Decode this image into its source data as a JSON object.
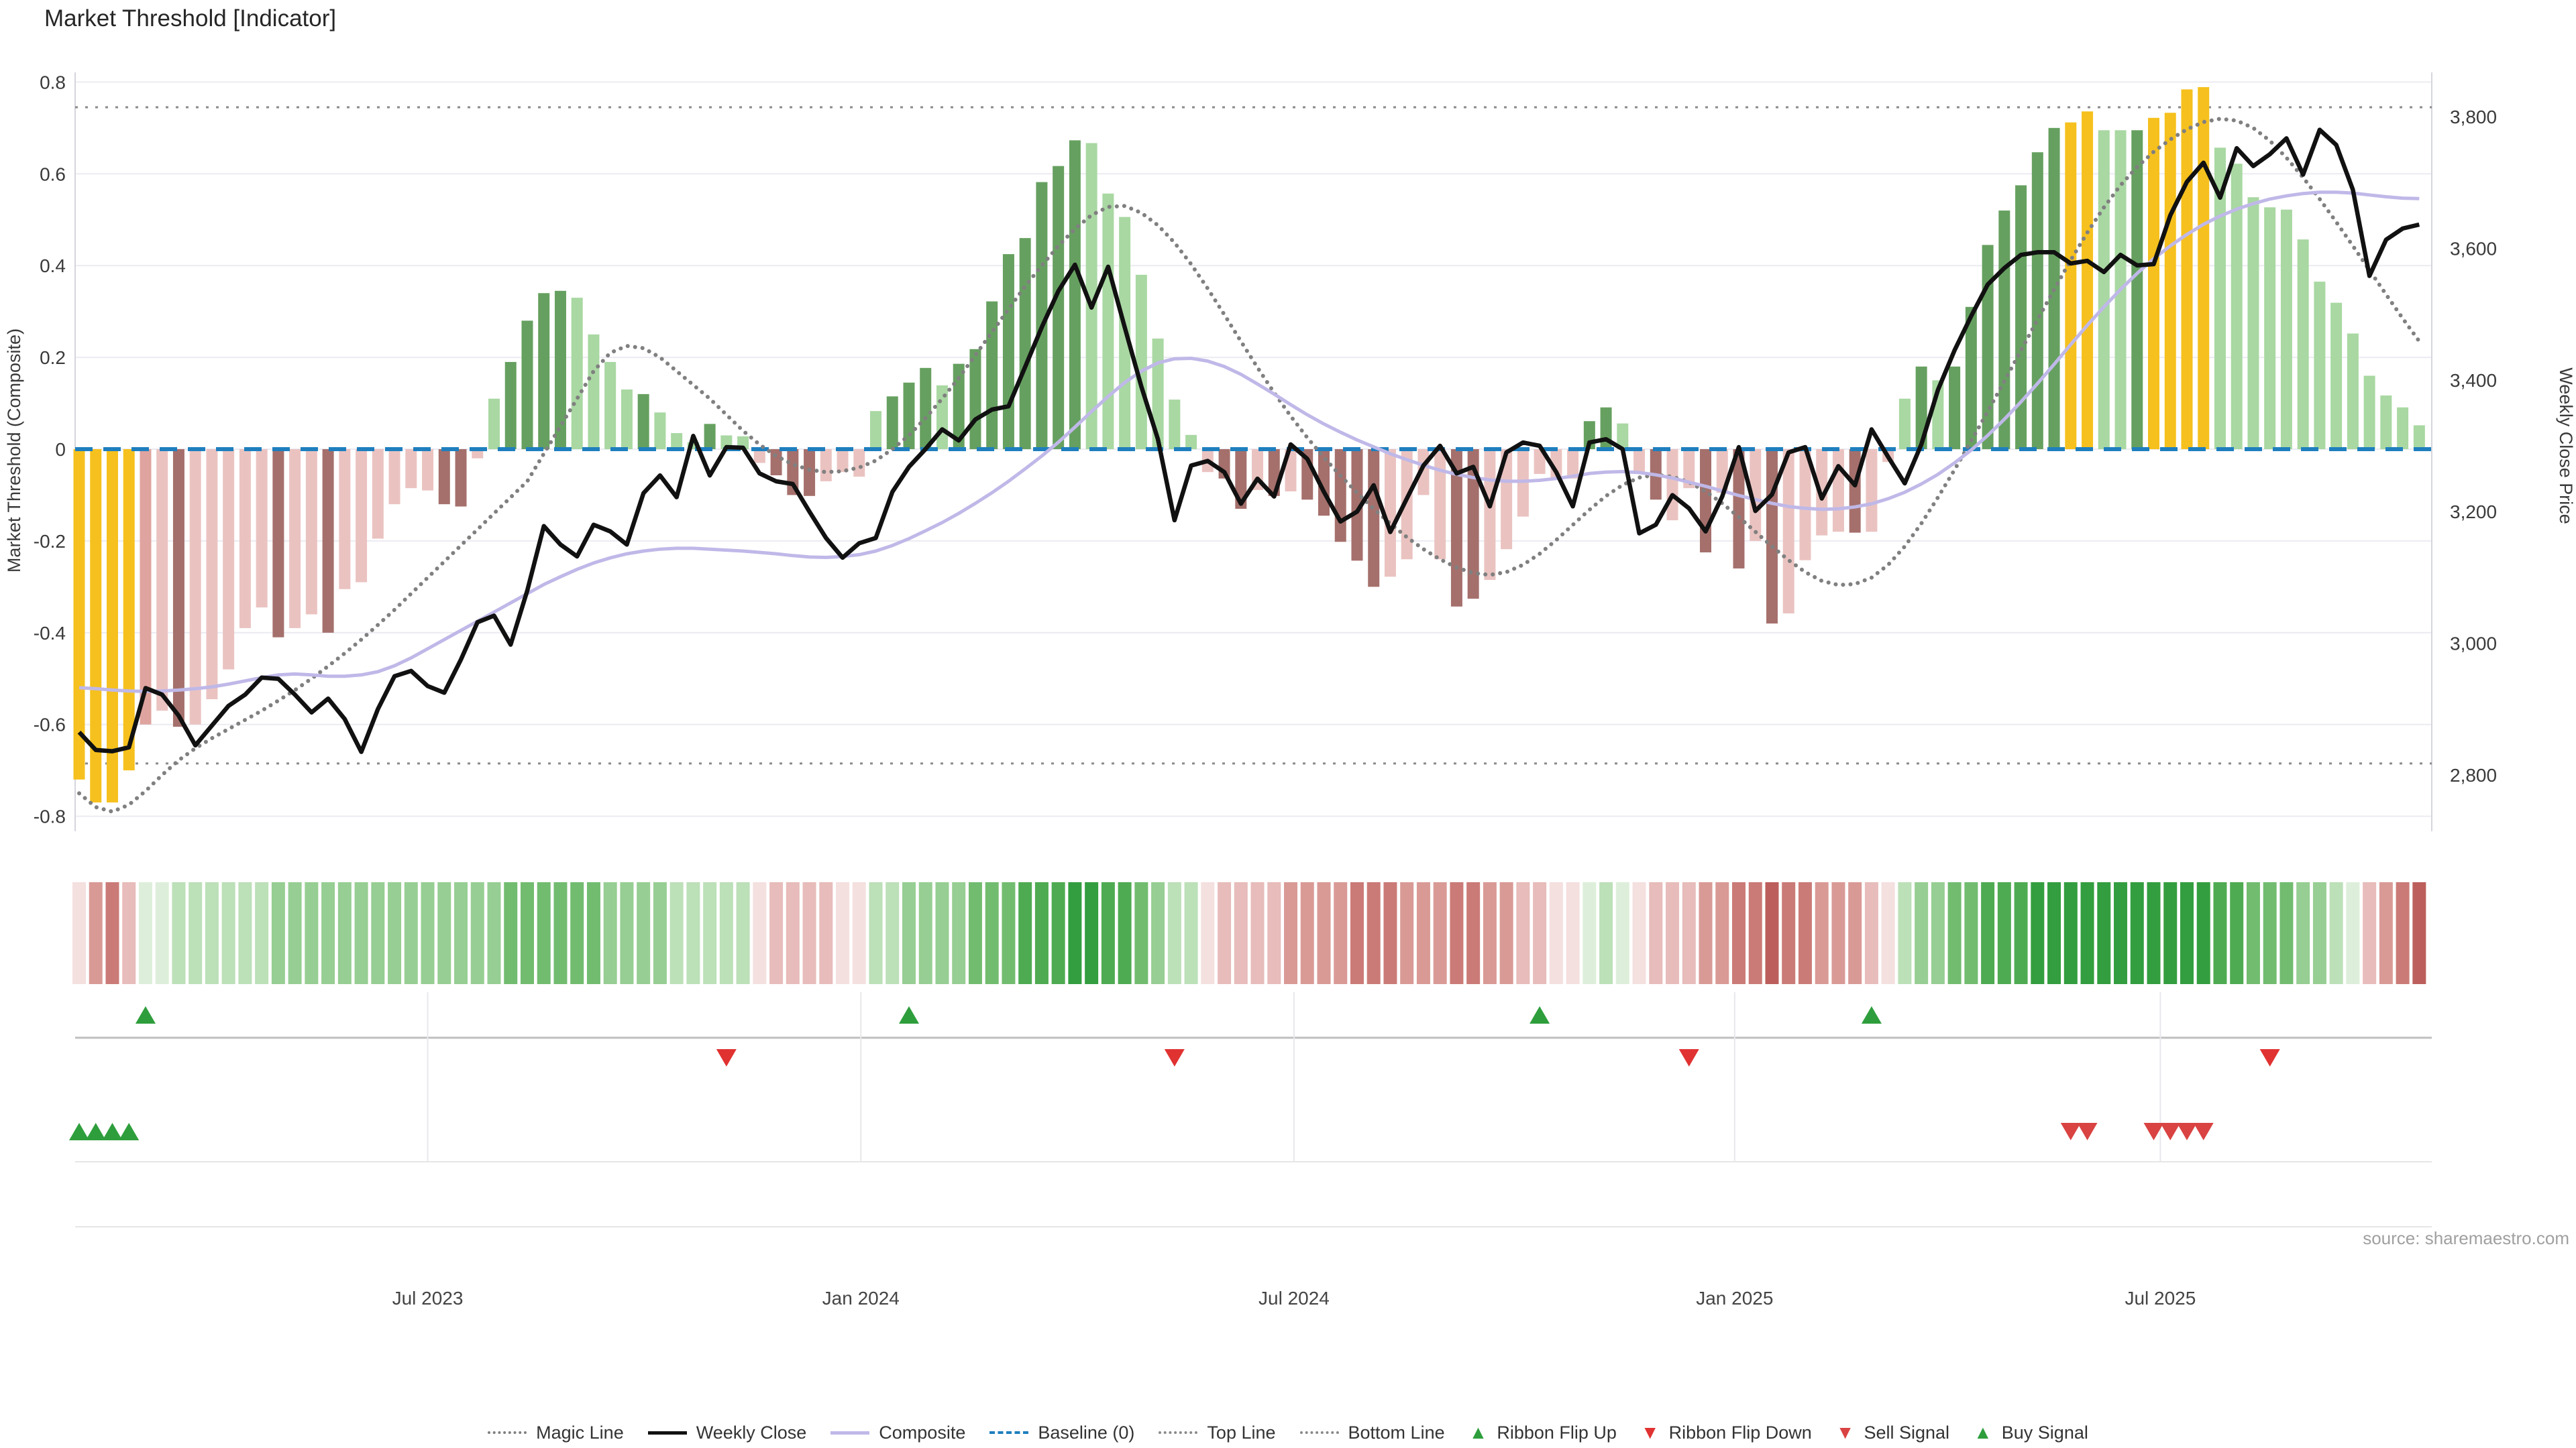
{
  "title": "Market Threshold [Indicator]",
  "source_note": "source: sharemaestro.com",
  "axes": {
    "left_label": "Market Threshold (Composite)",
    "right_label": "Weekly Close Price",
    "left_ticks": [
      {
        "v": 0.8,
        "label": "0.8"
      },
      {
        "v": 0.6,
        "label": "0.6"
      },
      {
        "v": 0.4,
        "label": "0.4"
      },
      {
        "v": 0.2,
        "label": "0.2"
      },
      {
        "v": 0.0,
        "label": "0"
      },
      {
        "v": -0.2,
        "label": "-0.2"
      },
      {
        "v": -0.4,
        "label": "-0.4"
      },
      {
        "v": -0.6,
        "label": "-0.6"
      },
      {
        "v": -0.8,
        "label": "-0.8"
      }
    ],
    "right_ticks": [
      {
        "p": 3800,
        "label": "3,800"
      },
      {
        "p": 3600,
        "label": "3,600"
      },
      {
        "p": 3400,
        "label": "3,400"
      },
      {
        "p": 3200,
        "label": "3,200"
      },
      {
        "p": 3000,
        "label": "3,000"
      },
      {
        "p": 2800,
        "label": "2,800"
      }
    ],
    "x_ticks": [
      {
        "week": 21.0,
        "label": "Jul 2023"
      },
      {
        "week": 47.1,
        "label": "Jan 2024"
      },
      {
        "week": 73.2,
        "label": "Jul 2024"
      },
      {
        "week": 99.75,
        "label": "Jan 2025"
      },
      {
        "week": 125.4,
        "label": "Jul 2025"
      }
    ],
    "left_range": [
      -0.8,
      0.8
    ],
    "right_range": [
      2800,
      3800
    ]
  },
  "legend": [
    {
      "label": "Magic Line",
      "swatch": "dotted",
      "color": "#7f7f7f"
    },
    {
      "label": "Weekly Close",
      "swatch": "solid",
      "color": "#111111"
    },
    {
      "label": "Composite",
      "swatch": "solid",
      "color": "#bfb8e8"
    },
    {
      "label": "Baseline (0)",
      "swatch": "dashed",
      "color": "#1f7fbe"
    },
    {
      "label": "Top Line",
      "swatch": "dotted",
      "color": "#8a8a8a"
    },
    {
      "label": "Bottom Line",
      "swatch": "dotted",
      "color": "#8a8a8a"
    },
    {
      "label": "Ribbon Flip Up",
      "swatch": "triangle-up",
      "color": "#2e9e3c"
    },
    {
      "label": "Ribbon Flip Down",
      "swatch": "triangle-down",
      "color": "#e03231"
    },
    {
      "label": "Sell Signal",
      "swatch": "triangle-down",
      "color": "#d94342"
    },
    {
      "label": "Buy Signal",
      "swatch": "triangle-up",
      "color": "#2e9e3c"
    }
  ],
  "colors": {
    "bar_palette": {
      "g": "#f6c11e",
      "p": "#eac3c1",
      "s": "#dfa49f",
      "m": "#a5706c",
      "L": "#a9d8a2",
      "D": "#66a060"
    },
    "ribbon_palette": {
      "r1": "#f4e0df",
      "r2": "#e7bcba",
      "r3": "#d99a96",
      "r4": "#cb7b77",
      "r5": "#bc5f5c",
      "g1": "#ddefda",
      "g2": "#bce0b8",
      "g3": "#97ce93",
      "g4": "#72bc70",
      "g5": "#4fab52",
      "g6": "#339e3f"
    },
    "weekly_close": "#111111",
    "composite": "#bfb8e8",
    "magic_line": "#808080",
    "top_bottom_line": "#8a8a8a",
    "baseline": "#1f7fbe",
    "grid": "#ebebf2",
    "spine": "#d5d5dd",
    "separator": "#bfbfbf",
    "panel_line": "#e6e6e6",
    "signal_up": "#2e9e3c",
    "signal_down": "#e03231",
    "sell": "#d94342",
    "buy": "#2e9e3c",
    "tick_text": "#3a3a3a",
    "source_text": "#a0a0a0"
  },
  "chart_data": {
    "type": "bar+line",
    "title": "Market Threshold [Indicator]",
    "x_unit": "weekly (Feb 2023 - Nov 2025)",
    "weeks": 142,
    "ylabel_left": "Market Threshold (Composite)",
    "ylabel_right": "Weekly Close Price",
    "ylim_left": [
      -0.8,
      0.8
    ],
    "ylim_right": [
      2800,
      3800
    ],
    "top_line": 0.745,
    "bottom_line": -0.685,
    "baseline": 0,
    "bars": {
      "values": [
        -0.72,
        -0.77,
        -0.77,
        -0.7,
        -0.6,
        -0.57,
        -0.605,
        -0.6,
        -0.545,
        -0.48,
        -0.39,
        -0.345,
        -0.41,
        -0.39,
        -0.36,
        -0.4,
        -0.305,
        -0.29,
        -0.195,
        -0.12,
        -0.085,
        -0.09,
        -0.12,
        -0.125,
        -0.02,
        0.11,
        0.19,
        0.28,
        0.34,
        0.345,
        0.33,
        0.25,
        0.19,
        0.13,
        0.12,
        0.08,
        0.035,
        0.015,
        0.055,
        0.03,
        0.028,
        -0.03,
        -0.057,
        -0.1,
        -0.102,
        -0.07,
        -0.05,
        -0.06,
        0.083,
        0.115,
        0.145,
        0.177,
        0.139,
        0.186,
        0.218,
        0.322,
        0.425,
        0.46,
        0.582,
        0.617,
        0.673,
        0.667,
        0.557,
        0.506,
        0.38,
        0.241,
        0.108,
        0.031,
        -0.05,
        -0.064,
        -0.13,
        -0.089,
        -0.102,
        -0.092,
        -0.11,
        -0.145,
        -0.202,
        -0.243,
        -0.3,
        -0.278,
        -0.24,
        -0.1,
        -0.24,
        -0.343,
        -0.326,
        -0.285,
        -0.218,
        -0.147,
        -0.054,
        -0.062,
        -0.064,
        0.061,
        0.091,
        0.056,
        -0.054,
        -0.11,
        -0.155,
        -0.085,
        -0.225,
        -0.095,
        -0.26,
        -0.2,
        -0.38,
        -0.358,
        -0.242,
        -0.188,
        -0.18,
        -0.182,
        -0.18,
        -0.028,
        0.11,
        0.18,
        0.15,
        0.18,
        0.31,
        0.445,
        0.52,
        0.575,
        0.647,
        0.7,
        0.712,
        0.736,
        0.695,
        0.695,
        0.695,
        0.722,
        0.733,
        0.784,
        0.789,
        0.657,
        0.622,
        0.549,
        0.527,
        0.522,
        0.457,
        0.365,
        0.319,
        0.252,
        0.16,
        0.117,
        0.091,
        0.052
      ],
      "colors": [
        "g",
        "g",
        "g",
        "g",
        "s",
        "p",
        "m",
        "p",
        "p",
        "p",
        "p",
        "p",
        "m",
        "p",
        "p",
        "m",
        "p",
        "p",
        "p",
        "p",
        "p",
        "p",
        "m",
        "m",
        "p",
        "L",
        "D",
        "D",
        "D",
        "D",
        "L",
        "L",
        "L",
        "L",
        "D",
        "L",
        "L",
        "L",
        "D",
        "L",
        "L",
        "p",
        "m",
        "m",
        "m",
        "p",
        "p",
        "p",
        "L",
        "D",
        "D",
        "D",
        "L",
        "D",
        "D",
        "D",
        "D",
        "D",
        "D",
        "D",
        "D",
        "L",
        "L",
        "L",
        "L",
        "L",
        "L",
        "L",
        "p",
        "m",
        "m",
        "p",
        "m",
        "p",
        "m",
        "m",
        "m",
        "m",
        "m",
        "p",
        "p",
        "p",
        "p",
        "m",
        "m",
        "p",
        "p",
        "p",
        "p",
        "p",
        "p",
        "D",
        "D",
        "L",
        "p",
        "m",
        "p",
        "p",
        "m",
        "p",
        "m",
        "p",
        "m",
        "p",
        "p",
        "p",
        "p",
        "m",
        "p",
        "p",
        "L",
        "D",
        "L",
        "D",
        "D",
        "D",
        "D",
        "D",
        "D",
        "D",
        "g",
        "g",
        "L",
        "L",
        "D",
        "g",
        "g",
        "g",
        "g",
        "L",
        "L",
        "L",
        "L",
        "L",
        "L",
        "L",
        "L",
        "L",
        "L",
        "L",
        "L",
        "L"
      ]
    },
    "weekly_close": [
      2865,
      2838,
      2836,
      2842,
      2932,
      2922,
      2890,
      2845,
      2875,
      2905,
      2922,
      2948,
      2946,
      2922,
      2895,
      2916,
      2885,
      2835,
      2900,
      2950,
      2958,
      2935,
      2925,
      2975,
      3032,
      3042,
      2998,
      3080,
      3178,
      3150,
      3132,
      3180,
      3170,
      3150,
      3228,
      3255,
      3222,
      3315,
      3255,
      3298,
      3297,
      3258,
      3246,
      3242,
      3200,
      3160,
      3130,
      3152,
      3160,
      3230,
      3268,
      3295,
      3325,
      3308,
      3340,
      3355,
      3360,
      3420,
      3480,
      3535,
      3575,
      3510,
      3572,
      3480,
      3390,
      3310,
      3187,
      3270,
      3277,
      3260,
      3212,
      3250,
      3223,
      3302,
      3280,
      3230,
      3185,
      3200,
      3240,
      3169,
      3220,
      3270,
      3300,
      3258,
      3268,
      3208,
      3290,
      3305,
      3300,
      3260,
      3208,
      3305,
      3310,
      3295,
      3167,
      3180,
      3225,
      3205,
      3170,
      3223,
      3298,
      3201,
      3226,
      3290,
      3298,
      3220,
      3269,
      3240,
      3325,
      3283,
      3243,
      3302,
      3385,
      3445,
      3497,
      3545,
      3570,
      3590,
      3594,
      3594,
      3577,
      3581,
      3564,
      3590,
      3574,
      3576,
      3650,
      3701,
      3730,
      3677,
      3752,
      3725,
      3743,
      3767,
      3712,
      3780,
      3757,
      3689,
      3558,
      3613,
      3630,
      3636
    ],
    "composite": [
      -0.52,
      -0.522,
      -0.525,
      -0.527,
      -0.528,
      -0.527,
      -0.525,
      -0.522,
      -0.518,
      -0.512,
      -0.505,
      -0.498,
      -0.492,
      -0.49,
      -0.492,
      -0.495,
      -0.495,
      -0.492,
      -0.485,
      -0.472,
      -0.455,
      -0.435,
      -0.415,
      -0.395,
      -0.375,
      -0.355,
      -0.335,
      -0.315,
      -0.295,
      -0.278,
      -0.262,
      -0.248,
      -0.237,
      -0.228,
      -0.222,
      -0.218,
      -0.216,
      -0.216,
      -0.218,
      -0.22,
      -0.222,
      -0.225,
      -0.228,
      -0.232,
      -0.235,
      -0.236,
      -0.234,
      -0.23,
      -0.222,
      -0.21,
      -0.195,
      -0.178,
      -0.16,
      -0.14,
      -0.118,
      -0.095,
      -0.07,
      -0.043,
      -0.015,
      0.015,
      0.048,
      0.082,
      0.115,
      0.145,
      0.17,
      0.188,
      0.197,
      0.198,
      0.192,
      0.18,
      0.163,
      0.142,
      0.12,
      0.097,
      0.075,
      0.055,
      0.037,
      0.02,
      0.005,
      -0.01,
      -0.023,
      -0.035,
      -0.046,
      -0.055,
      -0.062,
      -0.067,
      -0.07,
      -0.07,
      -0.068,
      -0.064,
      -0.059,
      -0.053,
      -0.05,
      -0.049,
      -0.051,
      -0.056,
      -0.063,
      -0.072,
      -0.081,
      -0.091,
      -0.101,
      -0.11,
      -0.118,
      -0.125,
      -0.129,
      -0.131,
      -0.13,
      -0.126,
      -0.119,
      -0.108,
      -0.094,
      -0.076,
      -0.055,
      -0.03,
      -0.002,
      0.03,
      0.065,
      0.103,
      0.143,
      0.185,
      0.228,
      0.27,
      0.31,
      0.348,
      0.383,
      0.415,
      0.443,
      0.468,
      0.49,
      0.508,
      0.523,
      0.535,
      0.545,
      0.552,
      0.557,
      0.56,
      0.56,
      0.558,
      0.554,
      0.55,
      0.547,
      0.546
    ],
    "magic_line": [
      -0.75,
      -0.78,
      -0.79,
      -0.775,
      -0.745,
      -0.71,
      -0.678,
      -0.652,
      -0.63,
      -0.61,
      -0.59,
      -0.57,
      -0.548,
      -0.525,
      -0.5,
      -0.473,
      -0.445,
      -0.415,
      -0.383,
      -0.35,
      -0.315,
      -0.28,
      -0.245,
      -0.21,
      -0.175,
      -0.14,
      -0.105,
      -0.07,
      -0.01,
      0.05,
      0.11,
      0.17,
      0.21,
      0.225,
      0.22,
      0.2,
      0.17,
      0.14,
      0.11,
      0.075,
      0.04,
      0.01,
      -0.015,
      -0.033,
      -0.045,
      -0.05,
      -0.048,
      -0.04,
      -0.025,
      0.0,
      0.03,
      0.068,
      0.11,
      0.155,
      0.205,
      0.255,
      0.305,
      0.355,
      0.4,
      0.443,
      0.48,
      0.51,
      0.528,
      0.53,
      0.515,
      0.488,
      0.45,
      0.403,
      0.35,
      0.293,
      0.235,
      0.178,
      0.123,
      0.072,
      0.025,
      -0.018,
      -0.058,
      -0.095,
      -0.13,
      -0.162,
      -0.192,
      -0.218,
      -0.24,
      -0.258,
      -0.27,
      -0.274,
      -0.268,
      -0.252,
      -0.228,
      -0.198,
      -0.165,
      -0.132,
      -0.102,
      -0.078,
      -0.062,
      -0.056,
      -0.06,
      -0.072,
      -0.092,
      -0.118,
      -0.148,
      -0.18,
      -0.212,
      -0.242,
      -0.268,
      -0.287,
      -0.296,
      -0.294,
      -0.28,
      -0.252,
      -0.212,
      -0.162,
      -0.105,
      -0.045,
      0.018,
      0.082,
      0.148,
      0.215,
      0.282,
      0.348,
      0.412,
      0.472,
      0.527,
      0.575,
      0.615,
      0.648,
      0.675,
      0.697,
      0.713,
      0.72,
      0.716,
      0.7,
      0.672,
      0.635,
      0.592,
      0.545,
      0.495,
      0.443,
      0.39,
      0.337,
      0.285,
      0.235
    ],
    "ribbon": [
      "r1",
      "r3",
      "r4",
      "r2",
      "g1",
      "g1",
      "g2",
      "g2",
      "g2",
      "g2",
      "g2",
      "g2",
      "g3",
      "g3",
      "g3",
      "g3",
      "g3",
      "g3",
      "g3",
      "g3",
      "g3",
      "g3",
      "g3",
      "g3",
      "g3",
      "g3",
      "g4",
      "g4",
      "g4",
      "g4",
      "g4",
      "g4",
      "g3",
      "g3",
      "g3",
      "g3",
      "g2",
      "g2",
      "g2",
      "g2",
      "g2",
      "r1",
      "r2",
      "r2",
      "r2",
      "r2",
      "r1",
      "r1",
      "g2",
      "g2",
      "g3",
      "g3",
      "g3",
      "g3",
      "g4",
      "g4",
      "g4",
      "g5",
      "g5",
      "g5",
      "g6",
      "g6",
      "g5",
      "g5",
      "g4",
      "g3",
      "g2",
      "g2",
      "r1",
      "r2",
      "r2",
      "r2",
      "r2",
      "r3",
      "r3",
      "r3",
      "r3",
      "r4",
      "r4",
      "r4",
      "r3",
      "r3",
      "r3",
      "r4",
      "r4",
      "r3",
      "r3",
      "r2",
      "r2",
      "r1",
      "r1",
      "g1",
      "g2",
      "g1",
      "r1",
      "r2",
      "r2",
      "r2",
      "r3",
      "r3",
      "r4",
      "r4",
      "r5",
      "r4",
      "r4",
      "r3",
      "r3",
      "r3",
      "r2",
      "r1",
      "g2",
      "g3",
      "g3",
      "g4",
      "g4",
      "g5",
      "g5",
      "g5",
      "g6",
      "g6",
      "g6",
      "g6",
      "g6",
      "g6",
      "g6",
      "g6",
      "g6",
      "g6",
      "g6",
      "g5",
      "g5",
      "g4",
      "g4",
      "g4",
      "g3",
      "g3",
      "g2",
      "g1",
      "r2",
      "r3",
      "r4",
      "r5"
    ],
    "signals": {
      "ribbon_flip_up_weeks": [
        4,
        50,
        88,
        108
      ],
      "ribbon_flip_down_weeks": [
        39,
        66,
        97,
        132
      ],
      "sell_signal_weeks": [
        120,
        121,
        125,
        126,
        127,
        128
      ],
      "buy_signal_weeks": [
        0,
        1,
        2,
        3
      ]
    }
  }
}
